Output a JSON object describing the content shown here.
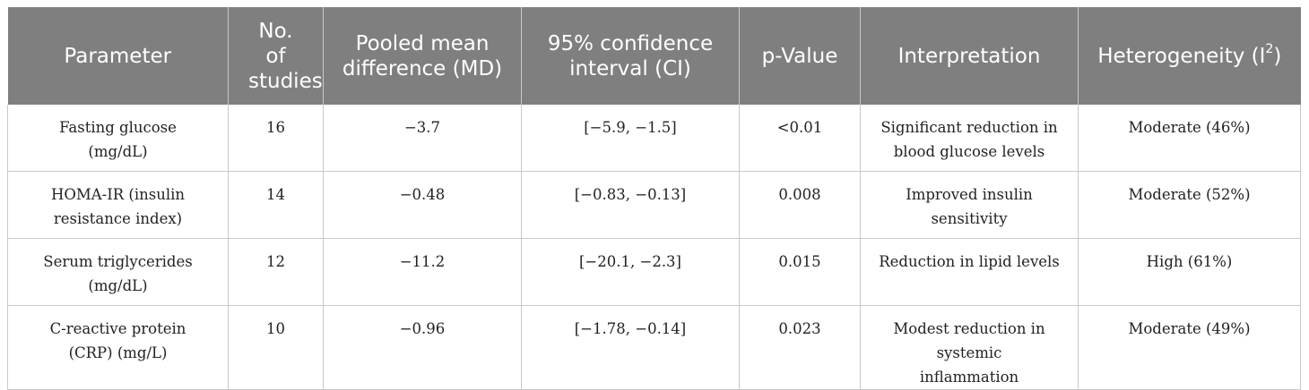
{
  "table": {
    "headers": {
      "parameter": "Parameter",
      "studies": "No. of studies",
      "md": "Pooled mean difference (MD)",
      "ci": "95% confidence interval (CI)",
      "p": "p-Value",
      "interpretation": "Interpretation",
      "heterogeneity_prefix": "Heterogeneity (I",
      "heterogeneity_sup": "2",
      "heterogeneity_suffix": ")"
    },
    "rows": [
      {
        "parameter": "Fasting glucose (mg/dL)",
        "studies": "16",
        "md": "−3.7",
        "ci": "[−5.9, −1.5]",
        "p": "<0.01",
        "interpretation": "Significant reduction in blood glucose levels",
        "heterogeneity": "Moderate (46%)"
      },
      {
        "parameter": "HOMA-IR (insulin resistance index)",
        "studies": "14",
        "md": "−0.48",
        "ci": "[−0.83, −0.13]",
        "p": "0.008",
        "interpretation": "Improved insulin sensitivity",
        "heterogeneity": "Moderate (52%)"
      },
      {
        "parameter": "Serum triglycerides (mg/dL)",
        "studies": "12",
        "md": "−11.2",
        "ci": "[−20.1, −2.3]",
        "p": "0.015",
        "interpretation": "Reduction in lipid levels",
        "heterogeneity": "High (61%)"
      },
      {
        "parameter": "C-reactive protein (CRP) (mg/L)",
        "studies": "10",
        "md": "−0.96",
        "ci": "[−1.78, −0.14]",
        "p": "0.023",
        "interpretation": "Modest reduction in systemic inflammation",
        "heterogeneity": "Moderate (49%)"
      }
    ]
  },
  "colors": {
    "header_bg": "#7f7f7f",
    "header_text": "#ffffff",
    "rule": "#c9c9c9"
  }
}
